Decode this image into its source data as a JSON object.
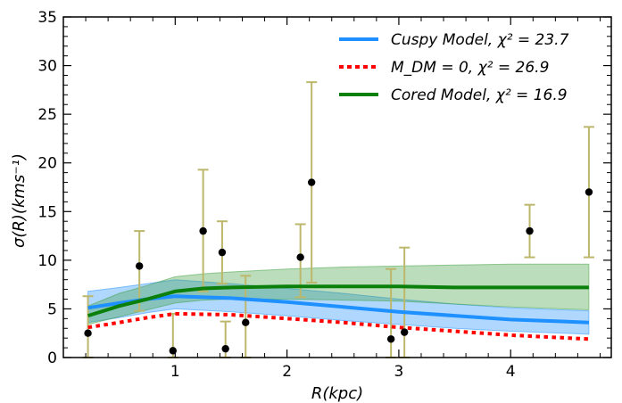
{
  "chart_data": {
    "type": "line",
    "xlabel": "R(kpc)",
    "ylabel": "σ(R)(kms⁻¹)",
    "xlim": [
      0.0,
      4.9
    ],
    "ylim": [
      0,
      35
    ],
    "x_ticks": [
      1,
      2,
      3,
      4
    ],
    "x_tick_labels": [
      "1",
      "2",
      "3",
      "4"
    ],
    "y_ticks": [
      0,
      5,
      10,
      15,
      20,
      25,
      30,
      35
    ],
    "y_tick_labels": [
      "0",
      "5",
      "10",
      "15",
      "20",
      "25",
      "30",
      "35"
    ],
    "grid": false,
    "legend_position": "top-right",
    "legend": [
      {
        "label": "Cuspy Model, χ² = 23.7",
        "color": "#1e90ff",
        "style": "solid"
      },
      {
        "label": "M_DM = 0, χ² = 26.9",
        "color": "#ff0000",
        "style": "dotted"
      },
      {
        "label": "Cored Model, χ² = 16.9",
        "color": "#0a800a",
        "style": "solid"
      }
    ],
    "observations": {
      "marker_color": "#000000",
      "errorbar_color": "#bdb76b",
      "points": [
        {
          "x": 0.22,
          "y": 2.5,
          "ylo": 0.0,
          "yhi": 6.3
        },
        {
          "x": 0.68,
          "y": 9.4,
          "ylo": 4.8,
          "yhi": 13.0
        },
        {
          "x": 0.98,
          "y": 0.7,
          "ylo": 0.0,
          "yhi": 4.5
        },
        {
          "x": 1.25,
          "y": 13.0,
          "ylo": 6.8,
          "yhi": 19.3
        },
        {
          "x": 1.42,
          "y": 10.8,
          "ylo": 7.6,
          "yhi": 14.0
        },
        {
          "x": 1.45,
          "y": 0.9,
          "ylo": 0.0,
          "yhi": 3.7
        },
        {
          "x": 1.63,
          "y": 3.6,
          "ylo": 0.0,
          "yhi": 8.4
        },
        {
          "x": 2.12,
          "y": 10.3,
          "ylo": 6.2,
          "yhi": 13.7
        },
        {
          "x": 2.22,
          "y": 18.0,
          "ylo": 7.7,
          "yhi": 28.3
        },
        {
          "x": 2.93,
          "y": 1.9,
          "ylo": 0.0,
          "yhi": 9.1
        },
        {
          "x": 3.05,
          "y": 2.6,
          "ylo": 0.0,
          "yhi": 11.3
        },
        {
          "x": 4.17,
          "y": 13.0,
          "ylo": 10.3,
          "yhi": 15.7
        },
        {
          "x": 4.7,
          "y": 17.0,
          "ylo": 10.3,
          "yhi": 23.7
        }
      ]
    },
    "series": [
      {
        "name": "Cuspy Model, χ² = 23.7",
        "color": "#1e90ff",
        "band_color": "#1e90ff",
        "x": [
          0.22,
          0.5,
          0.75,
          1.0,
          1.5,
          2.0,
          2.5,
          3.0,
          3.5,
          4.0,
          4.7
        ],
        "y": [
          5.1,
          5.6,
          6.0,
          6.3,
          6.1,
          5.7,
          5.2,
          4.7,
          4.3,
          3.9,
          3.6
        ],
        "lower": [
          3.6,
          4.1,
          4.6,
          5.0,
          4.7,
          4.3,
          3.8,
          3.4,
          3.0,
          2.7,
          2.4
        ],
        "upper": [
          6.8,
          7.2,
          7.6,
          8.0,
          7.6,
          7.1,
          6.6,
          6.0,
          5.5,
          5.1,
          4.8
        ]
      },
      {
        "name": "M_DM = 0, χ² = 26.9",
        "color": "#ff0000",
        "x": [
          0.22,
          0.5,
          0.75,
          1.0,
          1.5,
          2.0,
          2.5,
          3.0,
          3.5,
          4.0,
          4.7
        ],
        "y": [
          3.1,
          3.6,
          4.1,
          4.5,
          4.4,
          4.0,
          3.6,
          3.1,
          2.7,
          2.3,
          1.9
        ]
      },
      {
        "name": "Cored Model, χ² = 16.9",
        "color": "#0a800a",
        "band_color": "#3c9e3c",
        "x": [
          0.22,
          0.5,
          0.75,
          1.0,
          1.25,
          1.5,
          2.0,
          2.5,
          3.0,
          3.5,
          4.0,
          4.7
        ],
        "y": [
          4.3,
          5.3,
          6.0,
          6.8,
          7.1,
          7.2,
          7.3,
          7.3,
          7.3,
          7.2,
          7.2,
          7.2
        ],
        "lower": [
          3.4,
          4.2,
          4.9,
          5.6,
          5.9,
          6.0,
          6.0,
          5.9,
          5.8,
          5.5,
          5.2,
          4.9
        ],
        "upper": [
          5.3,
          6.6,
          7.4,
          8.3,
          8.6,
          8.8,
          9.1,
          9.3,
          9.4,
          9.5,
          9.6,
          9.6
        ]
      }
    ]
  }
}
